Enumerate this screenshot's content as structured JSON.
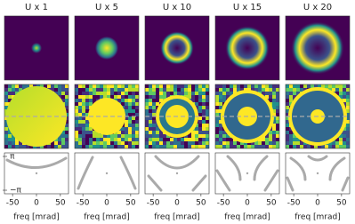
{
  "chart_data": {
    "type": "phase-panels",
    "titles": [
      "U x 1",
      "U x 5",
      "U x 10",
      "U x 15",
      "U x 20"
    ],
    "xlabel": "freq [mrad]",
    "xlim": [
      -67,
      67
    ],
    "xticks": [
      -50,
      0,
      50
    ],
    "ylim": [
      -3.8,
      3.8
    ],
    "yticks": [
      {
        "value": 3.1416,
        "label": "π"
      },
      {
        "value": -3.1416,
        "label": "−π"
      }
    ]
  }
}
